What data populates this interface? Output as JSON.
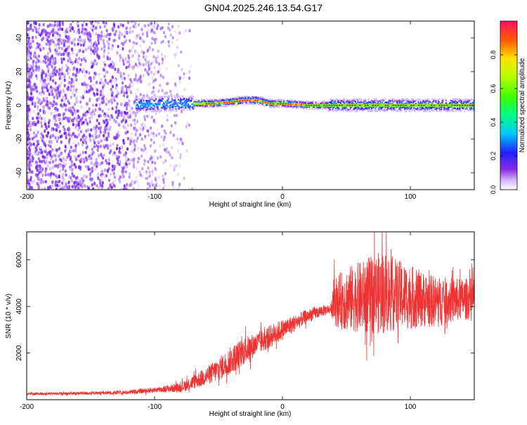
{
  "title": "GN04.2025.246.13.54.G17",
  "chart_data": [
    {
      "type": "heatmap",
      "title": "GN04.2025.246.13.54.G17",
      "xlabel": "Height of straight line (km)",
      "ylabel": "Frequency (Hz)",
      "xlim": [
        -200,
        150
      ],
      "ylim": [
        -50,
        50
      ],
      "xticks": [
        -200,
        -100,
        0,
        100
      ],
      "yticks": [
        -40,
        -20,
        0,
        20,
        40
      ],
      "colorbar": {
        "label": "Normalized spectral amplitude",
        "range": [
          0,
          1
        ],
        "ticks": [
          0.0,
          0.2,
          0.4,
          0.6,
          0.8
        ],
        "tick_labels": [
          "0.0",
          "0.2",
          "0.4",
          "0.6",
          "0.8"
        ]
      },
      "ridge": {
        "description_points_x": [
          -115,
          -90,
          -70,
          -55,
          -40,
          -30,
          -20,
          -10,
          0,
          20,
          40,
          60,
          80,
          100,
          120,
          150
        ],
        "frequency_hz": [
          0,
          1,
          1,
          1,
          2,
          3,
          3,
          1,
          1,
          0,
          0,
          0,
          0,
          0,
          0,
          0
        ],
        "noise_region_x_end": -70
      }
    },
    {
      "type": "line",
      "xlabel": "Height of straight line (km)",
      "ylabel": "SNR (10 * v/v)",
      "xlim": [
        -200,
        150
      ],
      "ylim": [
        0,
        7200
      ],
      "xticks": [
        -200,
        -100,
        0,
        100
      ],
      "yticks": [
        2000,
        4000,
        6000
      ],
      "color": "#ee3333",
      "series": [
        {
          "x": [
            -200,
            -180,
            -160,
            -140,
            -120,
            -100,
            -80,
            -70,
            -60,
            -50,
            -40,
            -30,
            -20,
            -10,
            0,
            10,
            20,
            30,
            38,
            40,
            50,
            60,
            70,
            80,
            90,
            100,
            110,
            120,
            130,
            140,
            150
          ],
          "y": [
            250,
            260,
            270,
            290,
            320,
            420,
            520,
            750,
            1000,
            1300,
            1700,
            2100,
            2400,
            2700,
            3000,
            3300,
            3600,
            3800,
            3900,
            4200,
            4300,
            4400,
            4500,
            4600,
            4500,
            4400,
            4300,
            4200,
            4250,
            4300,
            4350
          ],
          "spread": [
            60,
            60,
            70,
            70,
            90,
            120,
            200,
            300,
            400,
            500,
            600,
            600,
            500,
            500,
            450,
            350,
            300,
            250,
            200,
            1000,
            1400,
            1500,
            1700,
            1800,
            1500,
            1400,
            1200,
            1100,
            1000,
            900,
            900
          ]
        }
      ]
    }
  ]
}
